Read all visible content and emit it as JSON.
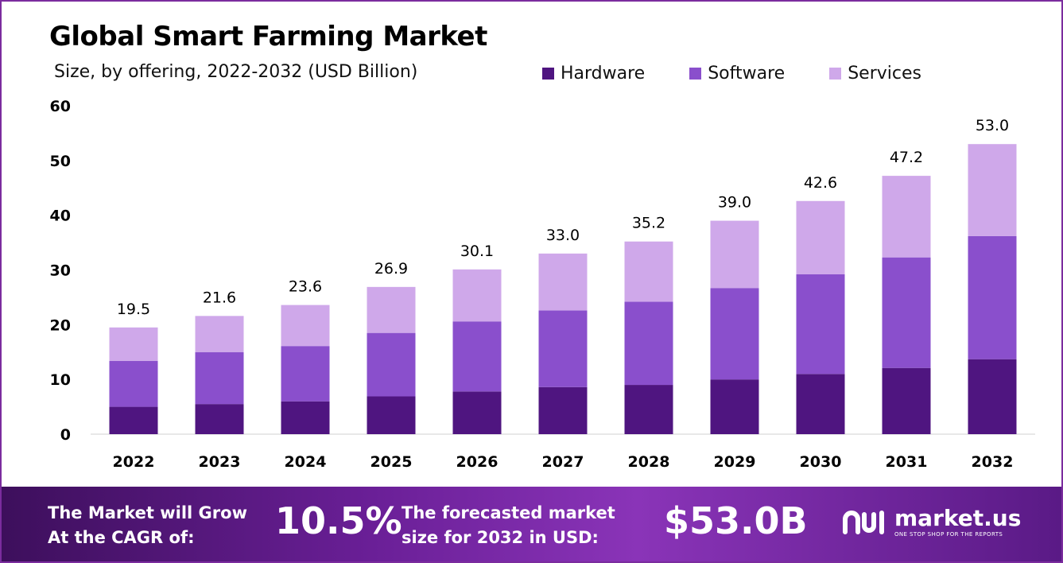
{
  "header": {
    "title": "Global Smart Farming Market",
    "subtitle": "Size, by offering, 2022-2032 (USD Billion)"
  },
  "legend": {
    "items": [
      "Hardware",
      "Software",
      "Services"
    ]
  },
  "colors": {
    "hardware": "#4f1580",
    "software": "#8a4fcc",
    "services": "#cfa8ea",
    "border": "#7b2c9e"
  },
  "chart_data": {
    "type": "bar",
    "stacked": true,
    "title": "Global Smart Farming Market",
    "subtitle": "Size, by offering, 2022-2032 (USD Billion)",
    "xlabel": "",
    "ylabel": "",
    "ylim": [
      0,
      60
    ],
    "yticks": [
      0,
      10,
      20,
      30,
      40,
      50,
      60
    ],
    "categories": [
      "2022",
      "2023",
      "2024",
      "2025",
      "2026",
      "2027",
      "2028",
      "2029",
      "2030",
      "2031",
      "2032"
    ],
    "series": [
      {
        "name": "Hardware",
        "values": [
          5.0,
          5.5,
          6.0,
          6.9,
          7.8,
          8.6,
          9.0,
          10.0,
          11.0,
          12.1,
          13.7
        ]
      },
      {
        "name": "Software",
        "values": [
          8.4,
          9.5,
          10.1,
          11.6,
          12.8,
          14.0,
          15.2,
          16.7,
          18.2,
          20.2,
          22.5
        ]
      },
      {
        "name": "Services",
        "values": [
          6.1,
          6.6,
          7.5,
          8.4,
          9.5,
          10.4,
          11.0,
          12.3,
          13.4,
          14.9,
          16.8
        ]
      }
    ],
    "totals": [
      "19.5",
      "21.6",
      "23.6",
      "26.9",
      "30.1",
      "33.0",
      "35.2",
      "39.0",
      "42.6",
      "47.2",
      "53.0"
    ],
    "legend_position": "top-right",
    "grid": false
  },
  "banner": {
    "cagr_label_line1": "The Market will Grow",
    "cagr_label_line2": "At the CAGR of:",
    "cagr_value": "10.5%",
    "forecast_label_line1": "The forecasted market",
    "forecast_label_line2": "size for 2032 in USD:",
    "forecast_value": "$53.0B",
    "logo_name": "market.us",
    "logo_tagline": "ONE STOP SHOP FOR THE REPORTS"
  }
}
